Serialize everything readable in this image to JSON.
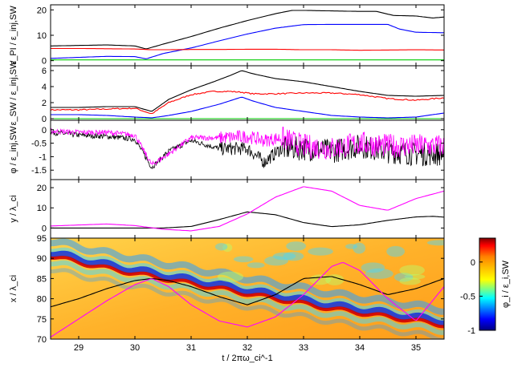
{
  "chart_data": [
    {
      "type": "line",
      "panel": 1,
      "ylabel": "ε_PI / ε_inj,SW",
      "x_range": [
        28.5,
        35.5
      ],
      "ylim": [
        -2,
        22
      ],
      "yticks": [
        0,
        10,
        20
      ],
      "series": [
        {
          "color": "#000000",
          "x": [
            28.5,
            29.0,
            29.5,
            30.0,
            30.2,
            30.5,
            31.0,
            31.5,
            32.0,
            32.5,
            32.8,
            33.0,
            33.5,
            34.0,
            34.3,
            34.6,
            35.0,
            35.3,
            35.5
          ],
          "y": [
            5.8,
            6.0,
            6.2,
            5.8,
            4.6,
            6.5,
            9.5,
            12.8,
            15.8,
            18.5,
            19.8,
            19.8,
            19.6,
            19.4,
            19.4,
            17.8,
            17.6,
            16.8,
            17.2
          ]
        },
        {
          "color": "#0000ff",
          "x": [
            28.5,
            29.0,
            29.5,
            30.0,
            30.2,
            30.5,
            31.0,
            31.5,
            32.0,
            32.5,
            33.0,
            33.5,
            34.0,
            34.5,
            34.7,
            35.0,
            35.5
          ],
          "y": [
            0.9,
            1.3,
            1.7,
            1.6,
            0.7,
            2.8,
            5.0,
            7.8,
            10.5,
            12.8,
            14.2,
            14.3,
            14.3,
            14.3,
            12.5,
            11.2,
            11.0
          ]
        },
        {
          "color": "#ff0000",
          "x": [
            28.5,
            29.0,
            29.5,
            30.0,
            30.3,
            30.5,
            31.0,
            31.5,
            32.0,
            32.5,
            33.0,
            33.5,
            34.0,
            34.5,
            35.0,
            35.5
          ],
          "y": [
            4.8,
            4.8,
            4.7,
            4.6,
            4.3,
            4.3,
            4.4,
            4.4,
            4.5,
            4.5,
            4.3,
            4.3,
            4.1,
            4.2,
            4.3,
            4.2
          ]
        },
        {
          "color": "#00cc00",
          "x": [
            28.5,
            35.5
          ],
          "y": [
            0.3,
            0.3
          ]
        }
      ]
    },
    {
      "type": "line",
      "panel": 2,
      "ylabel": "ε_SW / ε_inj,SW",
      "x_range": [
        28.5,
        35.5
      ],
      "ylim": [
        -0.2,
        6.6
      ],
      "yticks": [
        0,
        2,
        4,
        6
      ],
      "series": [
        {
          "color": "#000000",
          "x": [
            28.5,
            29.0,
            29.5,
            30.0,
            30.3,
            30.6,
            31.0,
            31.4,
            31.7,
            31.9,
            32.1,
            32.5,
            33.0,
            33.5,
            34.0,
            34.5,
            35.0,
            35.5
          ],
          "y": [
            1.4,
            1.4,
            1.5,
            1.5,
            0.9,
            2.4,
            3.6,
            4.6,
            5.4,
            6.0,
            5.6,
            5.0,
            4.6,
            4.0,
            3.4,
            2.9,
            2.8,
            2.9
          ]
        },
        {
          "color": "#ff0000",
          "x": [
            28.5,
            29.0,
            29.5,
            30.0,
            30.3,
            30.6,
            31.0,
            31.4,
            31.7,
            31.9,
            32.1,
            32.5,
            33.0,
            33.5,
            34.0,
            34.5,
            35.0,
            35.5
          ],
          "y": [
            1.1,
            1.1,
            1.2,
            1.3,
            0.6,
            2.0,
            3.0,
            3.4,
            3.4,
            3.3,
            3.1,
            3.1,
            3.2,
            3.2,
            3.0,
            2.5,
            2.3,
            2.6
          ]
        },
        {
          "color": "#0000ff",
          "x": [
            28.5,
            29.0,
            29.5,
            30.0,
            30.3,
            30.6,
            31.0,
            31.5,
            31.9,
            32.1,
            32.5,
            33.0,
            33.5,
            34.0,
            34.5,
            35.0,
            35.5
          ],
          "y": [
            0.5,
            0.5,
            0.4,
            0.2,
            0.1,
            0.4,
            0.9,
            1.8,
            2.7,
            2.2,
            1.4,
            0.9,
            0.4,
            0.2,
            0.1,
            0.2,
            0.7
          ]
        },
        {
          "color": "#00cc00",
          "x": [
            28.5,
            35.5
          ],
          "y": [
            0.0,
            0.0
          ]
        }
      ]
    },
    {
      "type": "line",
      "panel": 3,
      "ylabel": "φ / ε_inj,SW",
      "x_range": [
        28.5,
        35.5
      ],
      "ylim": [
        -1.85,
        0.35
      ],
      "yticks": [
        -1.5,
        -1,
        -0.5,
        0
      ],
      "yticklabels": [
        "-1.5",
        "-1",
        "-0.5",
        "0"
      ],
      "series": [
        {
          "color": "#000000",
          "x": [
            28.5,
            29.0,
            29.5,
            30.0,
            30.3,
            30.6,
            31.0,
            31.5,
            32.0,
            32.3,
            32.6,
            33.0,
            33.5,
            34.0,
            34.5,
            35.0,
            35.5
          ],
          "y": [
            -0.1,
            -0.2,
            -0.25,
            -0.35,
            -1.4,
            -0.8,
            -0.4,
            -0.7,
            -0.7,
            -1.2,
            -0.7,
            -0.7,
            -0.8,
            -0.6,
            -0.8,
            -0.9,
            -0.9
          ]
        },
        {
          "color": "#ff00ff",
          "x": [
            28.5,
            29.0,
            29.5,
            30.0,
            30.3,
            30.6,
            31.0,
            31.5,
            32.0,
            32.3,
            32.6,
            33.0,
            33.5,
            34.0,
            34.5,
            35.0,
            35.5
          ],
          "y": [
            -0.05,
            -0.1,
            -0.1,
            -0.2,
            -1.3,
            -0.9,
            -0.3,
            -0.3,
            -0.25,
            -0.4,
            -0.3,
            -0.6,
            -0.7,
            -0.5,
            -0.6,
            -0.6,
            -0.6
          ]
        }
      ]
    },
    {
      "type": "line",
      "panel": 4,
      "ylabel": "y / λ_ci",
      "x_range": [
        28.5,
        35.5
      ],
      "ylim": [
        -5,
        24
      ],
      "yticks": [
        0,
        10,
        20
      ],
      "series": [
        {
          "color": "#000000",
          "x": [
            28.5,
            29.0,
            29.5,
            30.0,
            30.5,
            31.0,
            31.5,
            32.0,
            32.5,
            33.0,
            33.5,
            34.0,
            34.5,
            35.0,
            35.3,
            35.5
          ],
          "y": [
            0,
            0,
            0,
            0,
            0,
            0.8,
            4.2,
            8.0,
            6.6,
            2.7,
            0.7,
            1.6,
            3.8,
            5.5,
            5.8,
            5.4
          ]
        },
        {
          "color": "#ff00ff",
          "x": [
            28.5,
            29.0,
            29.5,
            30.0,
            30.5,
            31.0,
            31.5,
            32.0,
            32.5,
            33.0,
            33.5,
            34.0,
            34.5,
            35.0,
            35.5
          ],
          "y": [
            1.0,
            1.5,
            2.0,
            1.2,
            -0.6,
            -1.4,
            0.8,
            7.0,
            15.3,
            20.5,
            18.3,
            11.2,
            8.8,
            14.6,
            18.3
          ]
        }
      ]
    },
    {
      "type": "heatmap",
      "panel": 5,
      "xlabel": "t / 2πω_ci^-1",
      "ylabel": "x / λ_ci",
      "x_range": [
        28.5,
        35.5
      ],
      "ylim": [
        70,
        95
      ],
      "xticks": [
        29,
        30,
        31,
        32,
        33,
        34,
        35
      ],
      "yticks": [
        70,
        75,
        80,
        85,
        90,
        95
      ],
      "colorbar": {
        "label": "φ_i / ε_i,SW",
        "range": [
          -1,
          0.35
        ],
        "ticks": [
          0,
          -0.5,
          -1
        ],
        "ticklabels": [
          "0",
          "-0.5",
          "-1"
        ]
      },
      "series": [
        {
          "name": "ridge",
          "color": "#d00000",
          "x": [
            28.5,
            29.5,
            30.5,
            31.5,
            32.5,
            33.5,
            34.5,
            35.5
          ],
          "y": [
            90.5,
            87.5,
            85.0,
            82.5,
            80.0,
            77.5,
            75.5,
            73.5
          ]
        },
        {
          "color": "#000000",
          "x": [
            28.5,
            29.0,
            29.5,
            30.0,
            30.3,
            30.6,
            31.0,
            31.5,
            32.0,
            32.5,
            33.0,
            33.5,
            34.0,
            34.5,
            35.0,
            35.5
          ],
          "y": [
            78.0,
            80.0,
            82.5,
            84.5,
            85.0,
            84.5,
            83.0,
            80.5,
            78.5,
            81.0,
            85.0,
            85.5,
            83.5,
            81.0,
            82.5,
            85.0
          ]
        },
        {
          "color": "#ff00ff",
          "x": [
            28.5,
            29.0,
            29.5,
            30.0,
            30.3,
            30.6,
            31.0,
            31.5,
            32.0,
            32.5,
            33.0,
            33.5,
            33.7,
            34.0,
            34.5,
            35.0,
            35.5
          ],
          "y": [
            70.5,
            75.0,
            79.5,
            83.5,
            85.0,
            83.0,
            78.5,
            74.5,
            73.0,
            75.5,
            81.0,
            88.0,
            89.0,
            87.0,
            80.0,
            74.5,
            83.0
          ]
        }
      ]
    }
  ]
}
